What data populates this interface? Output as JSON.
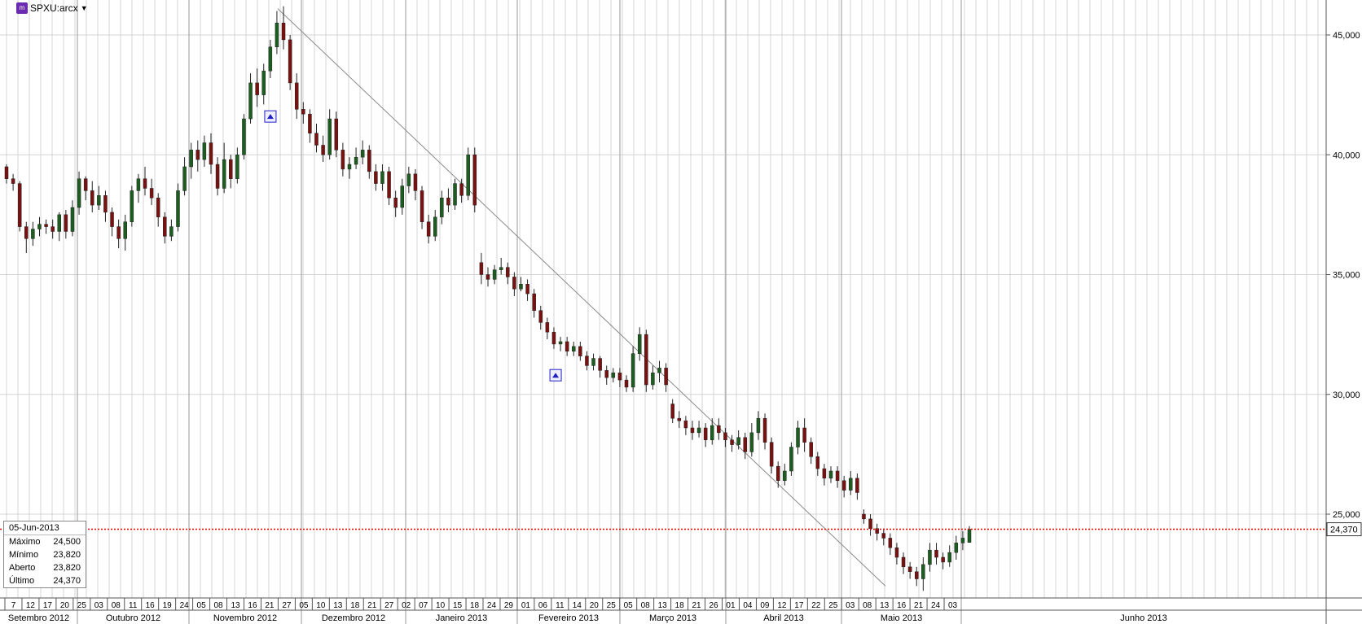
{
  "ticker": {
    "symbol": "SPXU:arcx",
    "logo_text": "m"
  },
  "last_price_label": "24,370",
  "info_box": {
    "date": "05-Jun-2013",
    "rows": [
      {
        "label": "Máximo",
        "value": "24,500"
      },
      {
        "label": "Mínimo",
        "value": "23,820"
      },
      {
        "label": "Aberto",
        "value": "23,820"
      },
      {
        "label": "Último",
        "value": "24,370"
      }
    ]
  },
  "colors": {
    "up": "#1b5e20",
    "down": "#7b1010",
    "grid": "#d4d4d4",
    "last_line": "#e00000",
    "marker": "#2020c0"
  },
  "chart_data": {
    "type": "candlestick",
    "y_axis": {
      "ticks": [
        "45,000",
        "40,000",
        "35,000",
        "30,000",
        "25,000"
      ],
      "tick_values": [
        45,
        40,
        35,
        30,
        25
      ],
      "ylim": [
        21.5,
        46.3
      ]
    },
    "day_labels": [
      "7",
      "12",
      "17",
      "20",
      "25",
      "03",
      "08",
      "11",
      "16",
      "19",
      "24",
      "05",
      "08",
      "13",
      "16",
      "21",
      "27",
      "05",
      "10",
      "13",
      "18",
      "21",
      "27",
      "02",
      "07",
      "10",
      "15",
      "18",
      "24",
      "29",
      "01",
      "06",
      "11",
      "14",
      "20",
      "25",
      "05",
      "08",
      "13",
      "18",
      "21",
      "26",
      "01",
      "04",
      "09",
      "12",
      "17",
      "22",
      "25",
      "03",
      "08",
      "13",
      "16",
      "21",
      "24",
      "03"
    ],
    "months": [
      "Setembro 2012",
      "Outubro 2012",
      "Novembro 2012",
      "Dezembro 2012",
      "Janeiro 2013",
      "Fevereiro 2013",
      "Março 2013",
      "Abril 2013",
      "Maio 2013",
      "Junho 2013"
    ],
    "last_value": 24.37,
    "trendline": {
      "from": {
        "date": "16-Nov-2012",
        "value": 46.1
      },
      "to": {
        "date": "29-May-2013",
        "value": 22.0
      }
    },
    "markers": [
      {
        "date": "16-Nov-2012",
        "value": 41.6
      },
      {
        "date": "04-Feb-2013",
        "value": 30.8
      }
    ],
    "ohlc": [
      [
        39.5,
        39.0,
        39.6,
        38.8
      ],
      [
        39.0,
        38.8,
        39.2,
        38.5
      ],
      [
        38.8,
        37.0,
        38.9,
        36.8
      ],
      [
        37.0,
        36.5,
        37.2,
        35.9
      ],
      [
        36.5,
        36.9,
        37.2,
        36.2
      ],
      [
        36.9,
        37.1,
        37.4,
        36.6
      ],
      [
        37.1,
        37.0,
        37.3,
        36.7
      ],
      [
        37.0,
        36.8,
        37.3,
        36.5
      ],
      [
        36.8,
        37.5,
        37.6,
        36.4
      ],
      [
        37.5,
        36.8,
        37.7,
        36.5
      ],
      [
        36.8,
        37.8,
        38.1,
        36.6
      ],
      [
        37.8,
        39.0,
        39.3,
        37.5
      ],
      [
        39.0,
        38.5,
        39.1,
        38.1
      ],
      [
        38.5,
        37.9,
        38.9,
        37.6
      ],
      [
        37.9,
        38.3,
        38.7,
        37.7
      ],
      [
        38.3,
        37.6,
        38.5,
        37.2
      ],
      [
        37.6,
        37.0,
        37.8,
        36.6
      ],
      [
        37.0,
        36.5,
        37.3,
        36.1
      ],
      [
        36.5,
        37.2,
        37.5,
        36.0
      ],
      [
        37.2,
        38.5,
        38.7,
        37.0
      ],
      [
        38.5,
        39.0,
        39.2,
        38.0
      ],
      [
        39.0,
        38.6,
        39.5,
        38.3
      ],
      [
        38.6,
        38.2,
        39.0,
        37.9
      ],
      [
        38.2,
        37.4,
        38.4,
        37.0
      ],
      [
        37.4,
        36.6,
        37.6,
        36.3
      ],
      [
        36.6,
        37.0,
        37.3,
        36.4
      ],
      [
        37.0,
        38.5,
        38.8,
        36.8
      ],
      [
        38.5,
        39.5,
        39.9,
        38.3
      ],
      [
        39.5,
        40.2,
        40.5,
        39.0
      ],
      [
        40.2,
        39.8,
        40.6,
        39.3
      ],
      [
        39.8,
        40.5,
        40.8,
        39.5
      ],
      [
        40.5,
        39.6,
        40.9,
        39.2
      ],
      [
        39.6,
        38.6,
        39.9,
        38.3
      ],
      [
        38.6,
        39.8,
        40.5,
        38.4
      ],
      [
        39.8,
        39.0,
        40.0,
        38.6
      ],
      [
        39.0,
        40.0,
        40.3,
        38.8
      ],
      [
        40.0,
        41.5,
        41.7,
        39.8
      ],
      [
        41.5,
        43.0,
        43.4,
        41.3
      ],
      [
        43.0,
        42.5,
        43.6,
        42.0
      ],
      [
        42.5,
        43.5,
        43.8,
        42.1
      ],
      [
        43.5,
        44.5,
        44.8,
        43.2
      ],
      [
        44.5,
        45.5,
        46.0,
        44.2
      ],
      [
        45.5,
        44.8,
        46.2,
        44.4
      ],
      [
        44.8,
        43.0,
        45.0,
        42.7
      ],
      [
        43.0,
        41.9,
        43.4,
        41.5
      ],
      [
        41.9,
        41.7,
        42.2,
        41.3
      ],
      [
        41.7,
        40.9,
        41.9,
        40.5
      ],
      [
        40.9,
        40.4,
        41.3,
        40.1
      ],
      [
        40.4,
        40.0,
        40.8,
        39.7
      ],
      [
        40.0,
        41.5,
        41.9,
        39.8
      ],
      [
        41.5,
        40.2,
        41.8,
        39.9
      ],
      [
        40.2,
        39.4,
        40.5,
        39.1
      ],
      [
        39.4,
        39.6,
        39.9,
        39.0
      ],
      [
        39.6,
        39.9,
        40.3,
        39.4
      ],
      [
        39.9,
        40.2,
        40.6,
        39.6
      ],
      [
        40.2,
        39.3,
        40.4,
        39.0
      ],
      [
        39.3,
        38.8,
        39.6,
        38.5
      ],
      [
        38.8,
        39.3,
        39.6,
        38.5
      ],
      [
        39.3,
        38.2,
        39.5,
        37.9
      ],
      [
        38.2,
        37.8,
        38.5,
        37.4
      ],
      [
        37.8,
        38.7,
        39.0,
        37.5
      ],
      [
        38.7,
        39.2,
        39.5,
        38.4
      ],
      [
        39.2,
        38.5,
        39.4,
        38.1
      ],
      [
        38.5,
        37.2,
        38.7,
        36.9
      ],
      [
        37.2,
        36.6,
        37.5,
        36.3
      ],
      [
        36.6,
        37.4,
        37.7,
        36.4
      ],
      [
        37.4,
        38.2,
        38.5,
        37.1
      ],
      [
        38.2,
        37.9,
        38.6,
        37.6
      ],
      [
        37.9,
        38.8,
        39.0,
        37.7
      ],
      [
        38.8,
        38.3,
        39.0,
        38.0
      ],
      [
        38.3,
        40.0,
        40.3,
        38.1
      ],
      [
        40.0,
        37.9,
        40.3,
        37.6
      ],
      [
        35.5,
        35.0,
        35.9,
        34.6
      ],
      [
        35.0,
        34.8,
        35.3,
        34.5
      ],
      [
        34.8,
        35.2,
        35.4,
        34.6
      ],
      [
        35.2,
        35.3,
        35.7,
        35.0
      ],
      [
        35.3,
        34.9,
        35.5,
        34.6
      ],
      [
        34.9,
        34.4,
        35.1,
        34.1
      ],
      [
        34.4,
        34.6,
        34.9,
        34.3
      ],
      [
        34.6,
        34.2,
        34.8,
        33.9
      ],
      [
        34.2,
        33.5,
        34.4,
        33.2
      ],
      [
        33.5,
        33.0,
        33.7,
        32.7
      ],
      [
        33.0,
        32.6,
        33.2,
        32.3
      ],
      [
        32.6,
        32.1,
        32.8,
        31.9
      ],
      [
        32.1,
        32.2,
        32.4,
        31.8
      ],
      [
        32.2,
        31.8,
        32.4,
        31.6
      ],
      [
        31.8,
        32.0,
        32.2,
        31.6
      ],
      [
        32.0,
        31.6,
        32.2,
        31.4
      ],
      [
        31.6,
        31.2,
        31.8,
        31.0
      ],
      [
        31.2,
        31.5,
        31.7,
        31.0
      ],
      [
        31.5,
        31.0,
        31.6,
        30.7
      ],
      [
        31.0,
        30.7,
        31.2,
        30.4
      ],
      [
        30.7,
        30.9,
        31.1,
        30.5
      ],
      [
        30.9,
        30.6,
        31.1,
        30.3
      ],
      [
        30.6,
        30.3,
        30.8,
        30.1
      ],
      [
        30.3,
        31.7,
        32.0,
        30.1
      ],
      [
        31.7,
        32.5,
        32.8,
        31.4
      ],
      [
        32.5,
        30.4,
        32.7,
        30.1
      ],
      [
        30.4,
        30.9,
        31.2,
        30.2
      ],
      [
        30.9,
        31.1,
        31.4,
        30.5
      ],
      [
        31.1,
        30.4,
        31.3,
        30.1
      ],
      [
        29.6,
        29.0,
        29.8,
        28.8
      ],
      [
        29.0,
        28.9,
        29.3,
        28.6
      ],
      [
        28.9,
        28.6,
        29.1,
        28.3
      ],
      [
        28.6,
        28.4,
        28.9,
        28.1
      ],
      [
        28.4,
        28.6,
        28.9,
        28.2
      ],
      [
        28.6,
        28.1,
        28.8,
        27.8
      ],
      [
        28.1,
        28.7,
        29.0,
        27.9
      ],
      [
        28.7,
        28.4,
        29.0,
        28.1
      ],
      [
        28.4,
        28.1,
        28.6,
        27.8
      ],
      [
        28.1,
        27.9,
        28.3,
        27.6
      ],
      [
        27.9,
        28.2,
        28.5,
        27.7
      ],
      [
        28.2,
        27.6,
        28.4,
        27.3
      ],
      [
        27.6,
        28.4,
        28.8,
        27.4
      ],
      [
        28.4,
        29.0,
        29.3,
        28.1
      ],
      [
        29.0,
        28.0,
        29.2,
        27.7
      ],
      [
        28.0,
        27.0,
        28.2,
        26.7
      ],
      [
        27.0,
        26.4,
        27.2,
        26.1
      ],
      [
        26.4,
        26.8,
        27.1,
        26.2
      ],
      [
        26.8,
        27.8,
        28.0,
        26.6
      ],
      [
        27.8,
        28.6,
        28.9,
        27.5
      ],
      [
        28.6,
        28.0,
        29.0,
        27.6
      ],
      [
        28.0,
        27.4,
        28.2,
        27.1
      ],
      [
        27.4,
        26.9,
        27.6,
        26.6
      ],
      [
        26.9,
        26.5,
        27.1,
        26.2
      ],
      [
        26.5,
        26.8,
        27.0,
        26.3
      ],
      [
        26.8,
        26.4,
        27.0,
        26.1
      ],
      [
        26.4,
        26.0,
        26.6,
        25.7
      ],
      [
        26.0,
        26.5,
        26.8,
        25.8
      ],
      [
        26.5,
        25.9,
        26.7,
        25.6
      ],
      [
        25.0,
        24.8,
        25.2,
        24.6
      ],
      [
        24.8,
        24.4,
        25.0,
        24.1
      ],
      [
        24.4,
        24.2,
        24.6,
        23.9
      ],
      [
        24.2,
        24.0,
        24.4,
        23.7
      ],
      [
        24.0,
        23.6,
        24.2,
        23.3
      ],
      [
        23.6,
        23.2,
        23.8,
        22.9
      ],
      [
        23.2,
        22.8,
        23.4,
        22.5
      ],
      [
        22.8,
        22.6,
        23.0,
        22.3
      ],
      [
        22.6,
        22.3,
        22.8,
        22.0
      ],
      [
        22.3,
        22.9,
        23.2,
        21.8
      ],
      [
        22.9,
        23.5,
        23.8,
        22.6
      ],
      [
        23.5,
        23.2,
        23.8,
        22.9
      ],
      [
        23.2,
        23.0,
        23.4,
        22.7
      ],
      [
        23.0,
        23.4,
        23.7,
        22.8
      ],
      [
        23.4,
        23.8,
        24.1,
        23.1
      ],
      [
        23.8,
        24.0,
        24.3,
        23.5
      ],
      [
        23.82,
        24.37,
        24.5,
        23.82
      ]
    ]
  }
}
